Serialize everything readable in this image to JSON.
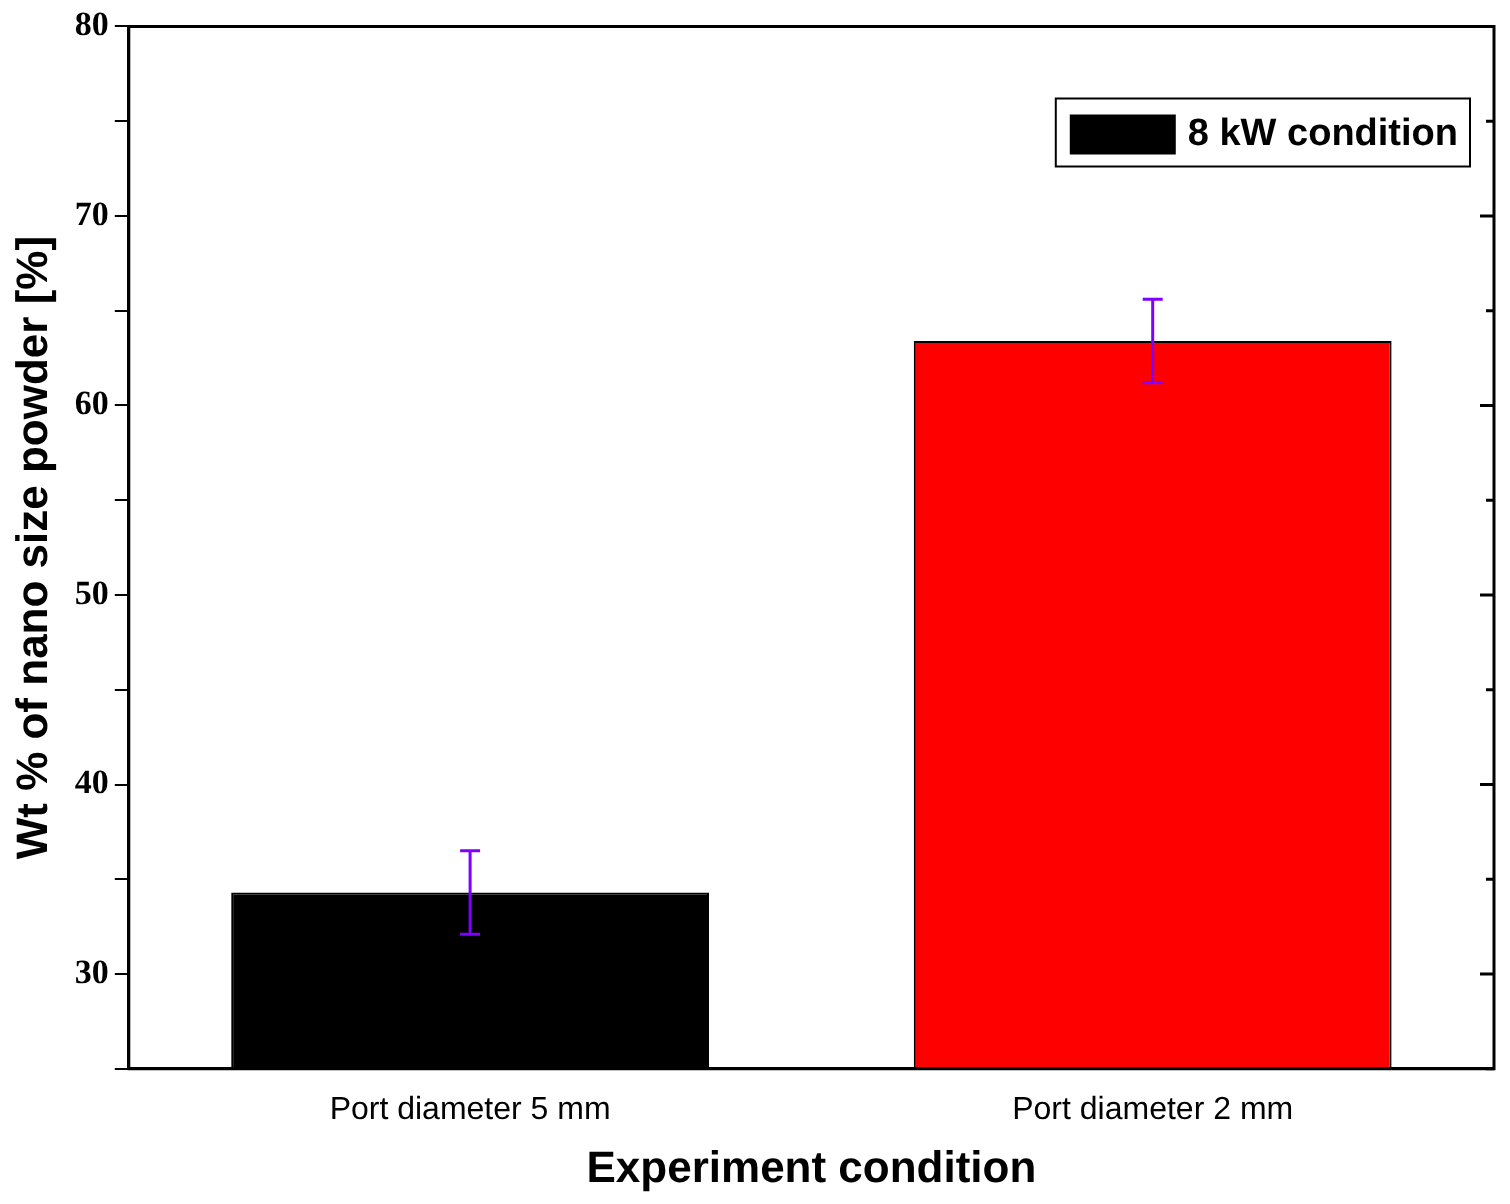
{
  "chart_data": {
    "type": "bar",
    "xlabel": "Experiment condition",
    "ylabel": "Wt % of nano size powder [%]",
    "categories": [
      "Port diameter 5 mm",
      "Port diameter 2 mm"
    ],
    "series": [
      {
        "name": "8 kW condition",
        "color": "#000000",
        "colors": [
          "#000000",
          "#ff0000"
        ],
        "values": [
          34.3,
          63.4
        ],
        "errors": [
          2.2,
          2.2
        ]
      }
    ],
    "ylim": [
      25,
      80
    ],
    "yticks": [
      {
        "value": 25,
        "label": null
      },
      30,
      {
        "value": 35,
        "label": null
      },
      40,
      {
        "value": 45,
        "label": null
      },
      50,
      {
        "value": 55,
        "label": null
      },
      60,
      {
        "value": 65,
        "label": null
      },
      70,
      {
        "value": 75,
        "label": null
      },
      80
    ],
    "grid": false,
    "legend": "top right"
  }
}
